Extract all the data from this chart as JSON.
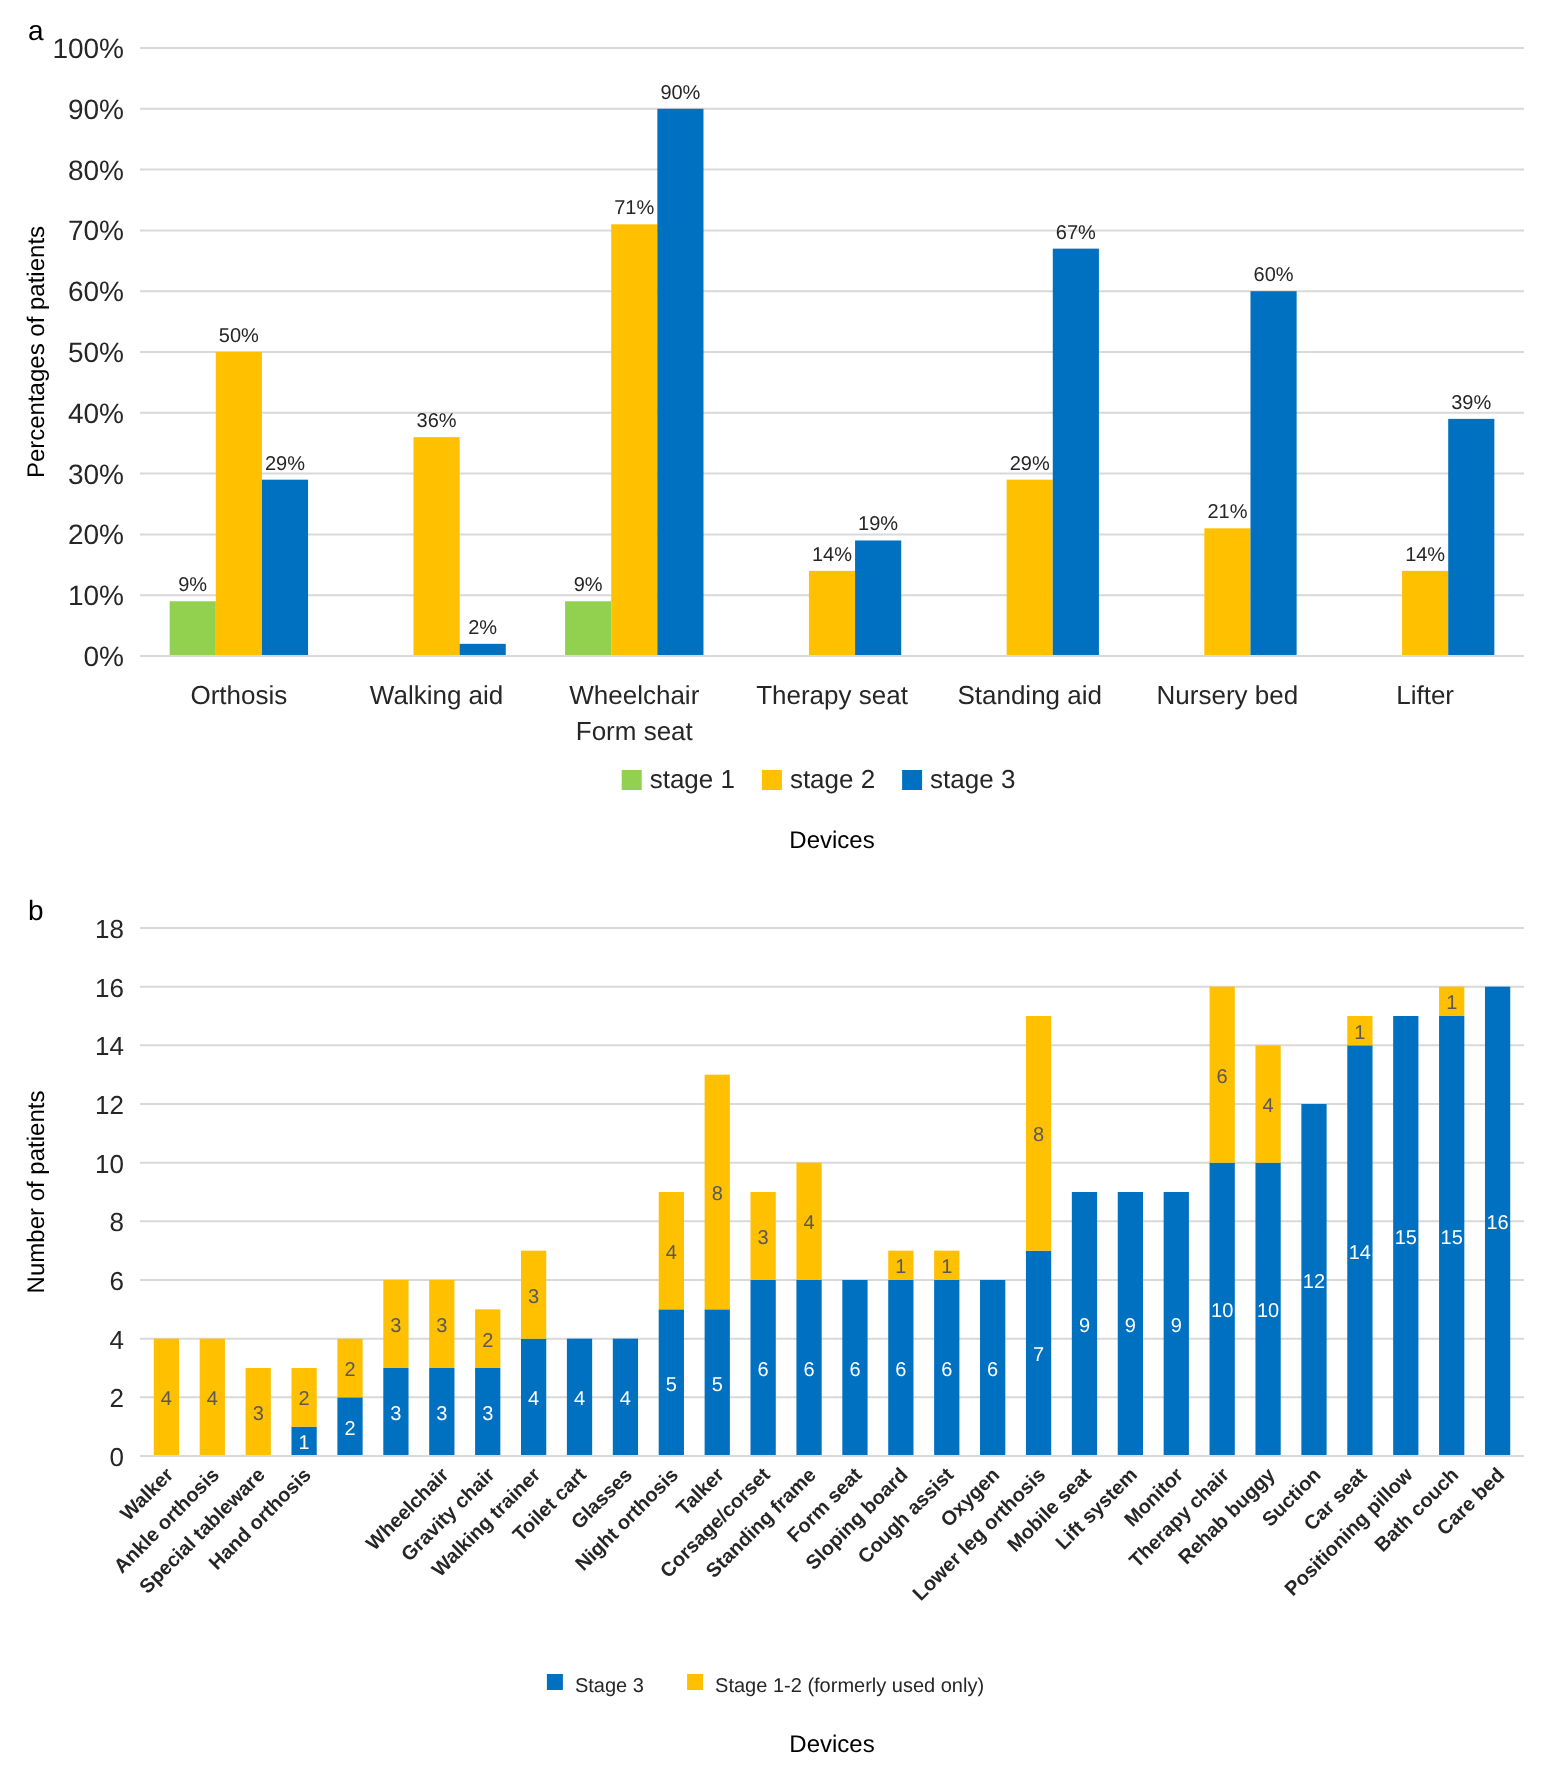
{
  "chart_data": [
    {
      "type": "bar",
      "title": "a",
      "xlabel": "Devices",
      "ylabel": "Percentages of patients",
      "categories": [
        "Orthosis",
        "Walking aid",
        "Wheelchair Form seat",
        "Therapy seat",
        "Standing aid",
        "Nursery bed",
        "Lifter"
      ],
      "series": [
        {
          "name": "stage 1",
          "color": "#92d050",
          "values": [
            9,
            null,
            9,
            null,
            null,
            null,
            null
          ],
          "value_labels": [
            "9%",
            null,
            "9%",
            null,
            null,
            null,
            null
          ]
        },
        {
          "name": "stage 2",
          "color": "#ffc000",
          "values": [
            50,
            36,
            71,
            14,
            29,
            21,
            14
          ],
          "value_labels": [
            "50%",
            "36%",
            "71%",
            "14%",
            "29%",
            "21%",
            "14%"
          ]
        },
        {
          "name": "stage 3",
          "color": "#0070c0",
          "values": [
            29,
            2,
            90,
            19,
            67,
            60,
            39
          ],
          "value_labels": [
            "29%",
            "2%",
            "90%",
            "19%",
            "67%",
            "60%",
            "39%"
          ]
        }
      ],
      "ylim": [
        0,
        100
      ],
      "yticks": [
        {
          "value": 0,
          "label": "0%"
        },
        {
          "value": 10,
          "label": "10%"
        },
        {
          "value": 20,
          "label": "20%"
        },
        {
          "value": 30,
          "label": "30%"
        },
        {
          "value": 40,
          "label": "40%"
        },
        {
          "value": 50,
          "label": "50%"
        },
        {
          "value": 60,
          "label": "60%"
        },
        {
          "value": 70,
          "label": "70%"
        },
        {
          "value": 80,
          "label": "80%"
        },
        {
          "value": 90,
          "label": "90%"
        },
        {
          "value": 100,
          "label": "100%"
        }
      ],
      "grid": "y",
      "legend": "bottom"
    },
    {
      "type": "bar",
      "title": "b",
      "xlabel": "Devices",
      "ylabel": "Number of patients",
      "stacked": true,
      "categories": [
        "Walker",
        "Ankle orthosis",
        "Special tableware",
        "Hand orthosis",
        null,
        null,
        "Wheelchair",
        "Gravity chair",
        "Walking trainer",
        "Toilet cart",
        "Glasses",
        "Night orthosis",
        "Talker",
        "Corsage/corset",
        "Standing frame",
        "Form seat",
        "Sloping board",
        "Cough assist",
        "Oxygen",
        "Lower leg orthosis",
        "Mobile seat",
        "Lift system",
        "Monitor",
        "Therapy chair",
        "Rehab buggy",
        "Suction",
        "Car seat",
        "Positioning pillow",
        "Bath couch",
        "Care bed"
      ],
      "series": [
        {
          "name": "Stage 3",
          "color": "#0070c0",
          "values": [
            null,
            null,
            null,
            1,
            2,
            3,
            3,
            3,
            4,
            4,
            4,
            5,
            5,
            6,
            6,
            6,
            6,
            6,
            6,
            7,
            9,
            9,
            9,
            10,
            10,
            12,
            14,
            15,
            15,
            16
          ]
        },
        {
          "name": "Stage 1-2 (formerly used only)",
          "color": "#ffc000",
          "values": [
            4,
            4,
            3,
            2,
            2,
            3,
            3,
            2,
            3,
            null,
            null,
            4,
            8,
            3,
            4,
            null,
            1,
            1,
            null,
            8,
            null,
            null,
            null,
            6,
            4,
            null,
            1,
            null,
            1,
            null
          ]
        }
      ],
      "ylim": [
        0,
        18
      ],
      "yticks": [
        0,
        2,
        4,
        6,
        8,
        10,
        12,
        14,
        16,
        18
      ],
      "grid": "y",
      "legend": "bottom",
      "data_labels": true
    }
  ]
}
